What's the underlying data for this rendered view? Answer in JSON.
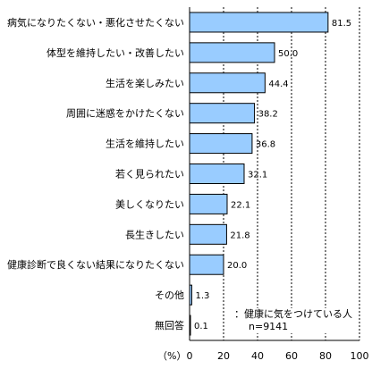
{
  "chart_data": {
    "type": "bar",
    "orientation": "horizontal",
    "categories": [
      "病気になりたくない・悪化させたくない",
      "体型を維持したい・改善したい",
      "生活を楽しみたい",
      "周囲に迷惑をかけたくない",
      "生活を維持したい",
      "若く見られたい",
      "美しくなりたい",
      "長生きしたい",
      "健康診断で良くない結果になりたくない",
      "その他",
      "無回答"
    ],
    "values": [
      81.5,
      50.0,
      44.4,
      38.2,
      36.8,
      32.1,
      22.1,
      21.8,
      20.0,
      1.3,
      0.1
    ],
    "value_labels": [
      "81.5",
      "50.0",
      "44.4",
      "38.2",
      "36.8",
      "32.1",
      "22.1",
      "21.8",
      "20.0",
      "1.3",
      "0.1"
    ],
    "xlim": [
      0,
      100
    ],
    "x_ticks": [
      "0",
      "20",
      "40",
      "60",
      "80",
      "100"
    ],
    "xlabel": "（%）",
    "grid": true,
    "bar_color": "#99ccff",
    "note_lines": [
      "：健康に気をつけている人",
      "n=9141"
    ]
  }
}
